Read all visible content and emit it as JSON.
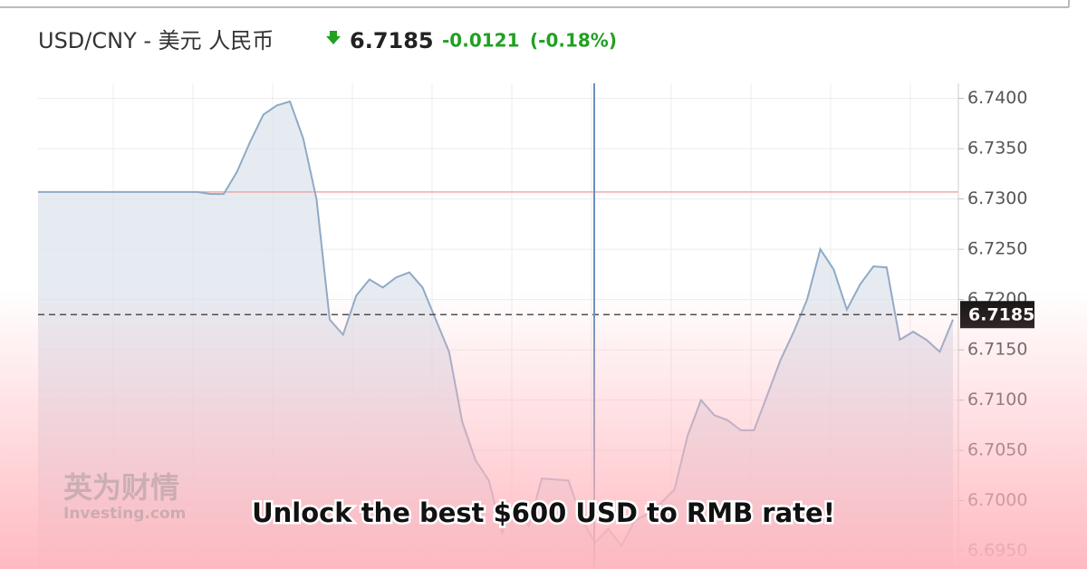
{
  "chart_data": {
    "type": "line",
    "title": "USD/CNY - 美元 人民币",
    "price": 6.7185,
    "change": -0.0121,
    "change_pct": "(-0.18%)",
    "reference_line": 6.7307,
    "line_color": "#8eaac6",
    "fill_color": "#dbe3ec",
    "reference_color": "#f0a8a8",
    "up_color": "#22a022",
    "ylim": [
      6.6932,
      6.7415
    ],
    "yticks": [
      {
        "value": 6.74,
        "label": "6.7400"
      },
      {
        "value": 6.735,
        "label": "6.7350"
      },
      {
        "value": 6.73,
        "label": "6.7300"
      },
      {
        "value": 6.725,
        "label": "6.7250"
      },
      {
        "value": 6.72,
        "label": "6.7200"
      },
      {
        "value": 6.715,
        "label": "6.7150"
      },
      {
        "value": 6.71,
        "label": "6.7100"
      },
      {
        "value": 6.705,
        "label": "6.7050"
      },
      {
        "value": 6.7,
        "label": "6.7000"
      },
      {
        "value": 6.695,
        "label": "6.6950"
      }
    ],
    "grid": true,
    "values": [
      6.7307,
      6.7307,
      6.7307,
      6.7307,
      6.7307,
      6.7307,
      6.7307,
      6.7307,
      6.7307,
      6.7307,
      6.7307,
      6.7307,
      6.7307,
      6.7305,
      6.7305,
      6.7327,
      6.7357,
      6.7384,
      6.7393,
      6.7397,
      6.736,
      6.73,
      6.718,
      6.7165,
      6.7204,
      6.722,
      6.7212,
      6.7222,
      6.7227,
      6.7212,
      6.718,
      6.7148,
      6.7078,
      6.704,
      6.702,
      6.6968,
      6.6995,
      6.6975,
      6.7022,
      6.7021,
      6.702,
      6.6982,
      6.6958,
      6.6972,
      6.6955,
      6.698,
      6.6987,
      6.6998,
      6.7011,
      6.7065,
      6.71,
      6.7085,
      6.708,
      6.707,
      6.707,
      6.7105,
      6.714,
      6.7168,
      6.72,
      6.725,
      6.723,
      6.719,
      6.7215,
      6.7233,
      6.7232,
      6.716,
      6.7168,
      6.716,
      6.7148,
      6.718
    ]
  },
  "watermark": {
    "brand": "英为财情",
    "site": "Investing.com"
  },
  "banner": "Unlock the best $600 USD to RMB rate!"
}
